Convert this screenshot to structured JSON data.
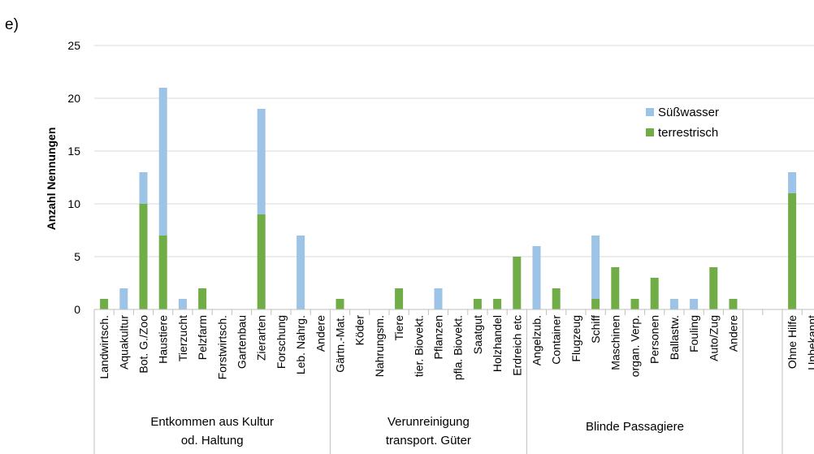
{
  "panel_label": "e)",
  "chart_data": {
    "type": "bar",
    "stacked": true,
    "ylabel": "Anzahl Nennungen",
    "ylim": [
      0,
      25
    ],
    "yticks": [
      0,
      5,
      10,
      15,
      20,
      25
    ],
    "grid": true,
    "legend_position": "right",
    "categories": [
      "Landwirtsch.",
      "Aquakultur",
      "Bot. G./Zoo",
      "Haustiere",
      "Tierzucht",
      "Pelzfarm",
      "Forstwirtsch.",
      "Gartenbau",
      "Zierarten",
      "Forschung",
      "Leb. Nahrg.",
      "Andere",
      "Gärtn.-Mat.",
      "Köder",
      "Nahrungsm.",
      "Tiere",
      "tier. Biovekt.",
      "Pflanzen",
      "pfla. Biovekt.",
      "Saatgut",
      "Holzhandel",
      "Erdreich etc",
      "Angelzub.",
      "Container",
      "Flugzeug",
      "Schiff",
      "Maschinen",
      "organ. Verp.",
      "Personen",
      "Ballastw.",
      "Fouling",
      "Auto/Zug",
      "Andere",
      "",
      "",
      "Ohne Hilfe",
      "Unbekannt"
    ],
    "series": [
      {
        "name": "terrestrisch",
        "color": "#70ad47",
        "values": [
          1,
          0,
          10,
          7,
          0,
          2,
          0,
          0,
          9,
          0,
          0,
          0,
          1,
          0,
          0,
          2,
          0,
          0,
          0,
          1,
          1,
          5,
          0,
          2,
          0,
          1,
          4,
          1,
          3,
          0,
          0,
          4,
          1,
          0,
          0,
          11,
          0
        ]
      },
      {
        "name": "Süßwasser",
        "color": "#9dc3e6",
        "values": [
          0,
          2,
          3,
          14,
          1,
          0,
          0,
          0,
          10,
          0,
          7,
          0,
          0,
          0,
          0,
          0,
          0,
          2,
          0,
          0,
          0,
          0,
          6,
          0,
          0,
          6,
          0,
          0,
          0,
          1,
          1,
          0,
          0,
          0,
          0,
          2,
          0
        ]
      }
    ],
    "groups": [
      {
        "label": "Entkommen aus Kultur od. Haltung",
        "lines": [
          "Entkommen aus Kultur",
          "od. Haltung"
        ],
        "start": 0,
        "end": 11
      },
      {
        "label": "Verunreinigung transport. Güter",
        "lines": [
          "Verunreinigung",
          "transport. Güter"
        ],
        "start": 12,
        "end": 21
      },
      {
        "label": "Blinde Passagiere",
        "lines": [
          "Blinde Passagiere"
        ],
        "start": 22,
        "end": 32
      },
      {
        "label": "",
        "lines": [],
        "start": 33,
        "end": 34
      },
      {
        "label": "",
        "lines": [],
        "start": 35,
        "end": 36
      }
    ],
    "legend": [
      "Süßwasser",
      "terrestrisch"
    ]
  }
}
